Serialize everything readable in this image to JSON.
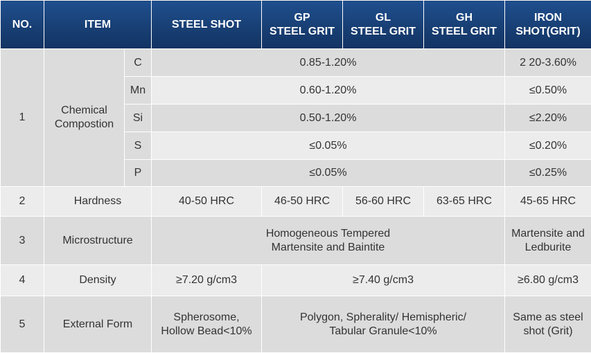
{
  "header": {
    "no": "NO.",
    "item": "ITEM",
    "steel_shot": "STEEL SHOT",
    "gp_line1": "GP",
    "gp_line2": "STEEL GRIT",
    "gl_line1": "GL",
    "gl_line2": "STEEL GRIT",
    "gh_line1": "GH",
    "gh_line2": "STEEL GRIT",
    "iron_line1": "IRON",
    "iron_line2": "SHOT(GRIT)"
  },
  "chemical": {
    "no": "1",
    "label_line1": "Chemical",
    "label_line2": "Compostion",
    "elements": [
      {
        "symbol": "C",
        "steel": "0.85-1.20%",
        "iron": "2 20-3.60%"
      },
      {
        "symbol": "Mn",
        "steel": "0.60-1.20%",
        "iron": "≤0.50%"
      },
      {
        "symbol": "Si",
        "steel": "0.50-1.20%",
        "iron": "≤2.20%"
      },
      {
        "symbol": "S",
        "steel": "≤0.05%",
        "iron": "≤0.20%"
      },
      {
        "symbol": "P",
        "steel": "≤0.05%",
        "iron": "≤0.25%"
      }
    ]
  },
  "hardness": {
    "no": "2",
    "label": "Hardness",
    "steel_shot": "40-50 HRC",
    "gp": "46-50 HRC",
    "gl": "56-60 HRC",
    "gh": "63-65 HRC",
    "iron": "45-65 HRC"
  },
  "microstructure": {
    "no": "3",
    "label": "Microstructure",
    "steel_line1": "Homogeneous Tempered",
    "steel_line2": "Martensite and Baintite",
    "iron_line1": "Martensite and",
    "iron_line2": "Ledburite"
  },
  "density": {
    "no": "4",
    "label": "Density",
    "steel_shot": "≥7.20 g/cm3",
    "grit": "≥7.40 g/cm3",
    "iron": "≥6.80 g/cm3"
  },
  "external_form": {
    "no": "5",
    "label": "External Form",
    "steel_line1": "Spherosome,",
    "steel_line2": "Hollow Bead<10%",
    "grit_line1": "Polygon, Spherality/ Hemispheric/",
    "grit_line2": "Tabular Granule<10%",
    "iron_line1": "Same as steel",
    "iron_line2": "shot (Grit)"
  }
}
